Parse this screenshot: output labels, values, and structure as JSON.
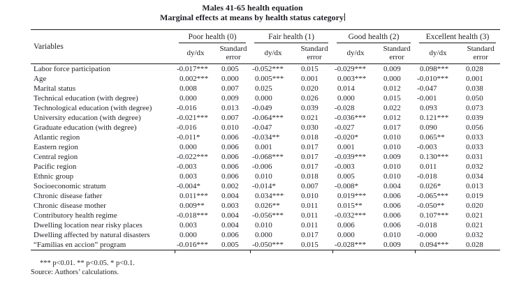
{
  "title": {
    "line1": "Males 41-65 health equation",
    "line2": "Marginal effects at means by health status category"
  },
  "table": {
    "variables_header": "Variables",
    "groups": [
      {
        "label": "Poor health (0)"
      },
      {
        "label": "Fair health (1)"
      },
      {
        "label": "Good health (2)"
      },
      {
        "label": "Excellent health (3)"
      }
    ],
    "subheaders": {
      "dydx": "dy/dx",
      "se": "Standard error"
    },
    "rows": [
      {
        "label": "Labor force participation",
        "values": [
          "-0.017***",
          "0.005",
          "-0.052***",
          "0.015",
          "-0.029***",
          "0.009",
          "0.098***",
          "0.028"
        ]
      },
      {
        "label": "Age",
        "values": [
          "0.002***",
          "0.000",
          "0.005***",
          "0.001",
          "0.003***",
          "0.000",
          "-0.010***",
          "0.001"
        ]
      },
      {
        "label": "Marital status",
        "values": [
          "0.008",
          "0.007",
          "0.025",
          "0.020",
          "0.014",
          "0.012",
          "-0.047",
          "0.038"
        ]
      },
      {
        "label": "Technical education (with degree)",
        "values": [
          "0.000",
          "0.009",
          "0.000",
          "0.026",
          "0.000",
          "0.015",
          "-0.001",
          "0.050"
        ]
      },
      {
        "label": "Technological education (with degree)",
        "values": [
          "-0.016",
          "0.013",
          "-0.049",
          "0.039",
          "-0.028",
          "0.022",
          "0.093",
          "0.073"
        ]
      },
      {
        "label": "University education (with degree)",
        "values": [
          "-0.021***",
          "0.007",
          "-0.064***",
          "0.021",
          "-0.036***",
          "0.012",
          "0.121***",
          "0.039"
        ]
      },
      {
        "label": "Graduate education (with degree)",
        "values": [
          "-0.016",
          "0.010",
          "-0.047",
          "0.030",
          "-0.027",
          "0.017",
          "0.090",
          "0.056"
        ]
      },
      {
        "label": "Atlantic region",
        "values": [
          "-0.011*",
          "0.006",
          "-0.034**",
          "0.018",
          "-0.020*",
          "0.010",
          "0.065**",
          "0.033"
        ]
      },
      {
        "label": "Eastern region",
        "values": [
          "0.000",
          "0.006",
          "0.001",
          "0.017",
          "0.001",
          "0.010",
          "-0.003",
          "0.033"
        ]
      },
      {
        "label": "Central region",
        "values": [
          "-0.022***",
          "0.006",
          "-0.068***",
          "0.017",
          "-0.039***",
          "0.009",
          "0.130***",
          "0.031"
        ]
      },
      {
        "label": "Pacific region",
        "values": [
          "-0.003",
          "0.006",
          "-0.006",
          "0.017",
          "-0.003",
          "0.010",
          "0.011",
          "0.032"
        ]
      },
      {
        "label": "Ethnic group",
        "values": [
          "0.003",
          "0.006",
          "0.010",
          "0.018",
          "0.005",
          "0.010",
          "-0.018",
          "0.034"
        ]
      },
      {
        "label": "Socioeconomic stratum",
        "values": [
          "-0.004*",
          "0.002",
          "-0.014*",
          "0.007",
          "-0.008*",
          "0.004",
          "0.026*",
          "0.013"
        ]
      },
      {
        "label": "Chronic disease father",
        "values": [
          "0.011***",
          "0.004",
          "0.034***",
          "0.010",
          "0.019***",
          "0.006",
          "-0.065***",
          "0.019"
        ]
      },
      {
        "label": "Chronic disease mother",
        "values": [
          "0.009**",
          "0.003",
          "0.026**",
          "0.011",
          "0.015**",
          "0.006",
          "-0.050**",
          "0.020"
        ]
      },
      {
        "label": "Contributory health regime",
        "values": [
          "-0.018***",
          "0.004",
          "-0.056***",
          "0.011",
          "-0.032***",
          "0.006",
          "0.107***",
          "0.021"
        ]
      },
      {
        "label": "Dwelling location near risky places",
        "values": [
          "0.003",
          "0.004",
          "0.010",
          "0.011",
          "0.006",
          "0.006",
          "-0.018",
          "0.021"
        ]
      },
      {
        "label": "Dwelling affected by natural disasters",
        "values": [
          "0.000",
          "0.006",
          "0.000",
          "0.017",
          "0.000",
          "0.010",
          "-0.000",
          "0.032"
        ]
      },
      {
        "label": "“Familias en accion” program",
        "values": [
          "-0.016***",
          "0.005",
          "-0.050***",
          "0.015",
          "-0.028***",
          "0.009",
          "0.094***",
          "0.028"
        ]
      }
    ]
  },
  "footnotes": {
    "significance": "*** p<0.01. ** p<0.05. * p<0.1.",
    "source": "Source: Authors’ calculations."
  }
}
